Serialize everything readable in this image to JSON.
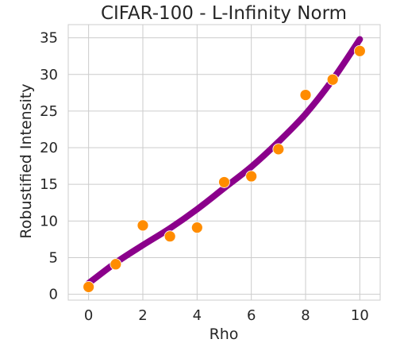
{
  "chart_data": {
    "type": "scatter",
    "title": "CIFAR-100 - L-Infinity Norm",
    "xlabel": "Rho",
    "ylabel": "Robustified Intensity",
    "xlim": [
      -0.75,
      10.75
    ],
    "ylim": [
      -0.8,
      36.8
    ],
    "xticks": [
      0,
      2,
      4,
      6,
      8,
      10
    ],
    "yticks": [
      0,
      5,
      10,
      15,
      20,
      25,
      30,
      35
    ],
    "grid": true,
    "series": [
      {
        "type": "scatter",
        "x": [
          0,
          1,
          2,
          3,
          4,
          5,
          6,
          7,
          8,
          9,
          10
        ],
        "y": [
          1.0,
          4.1,
          9.4,
          7.9,
          9.1,
          15.3,
          16.1,
          19.8,
          27.2,
          29.3,
          33.2
        ],
        "color": "#ff8c00"
      },
      {
        "type": "line",
        "x": [
          0,
          1,
          2,
          3,
          4,
          5,
          6,
          7,
          8,
          9,
          10
        ],
        "y": [
          1.5,
          4.3,
          6.7,
          9.0,
          11.6,
          14.5,
          17.4,
          20.8,
          24.6,
          29.3,
          34.8
        ],
        "color": "#8b008b"
      }
    ]
  }
}
